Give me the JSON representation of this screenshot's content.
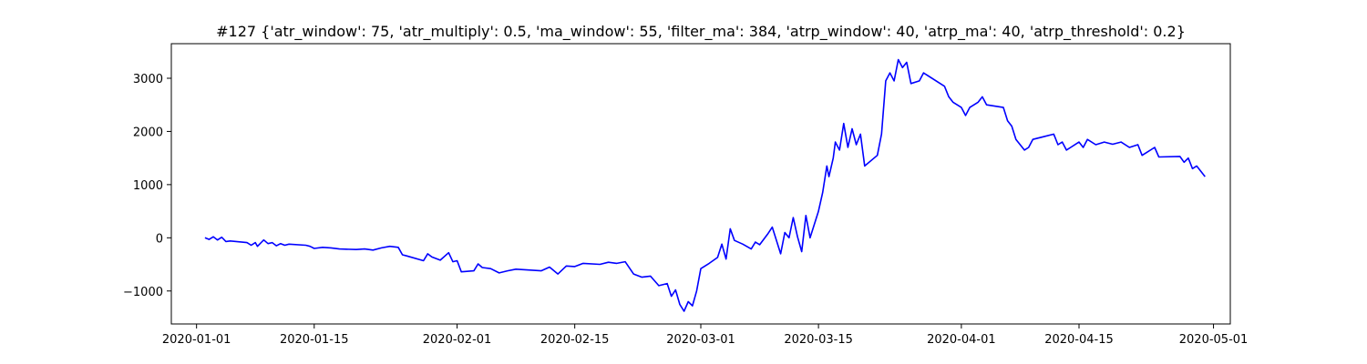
{
  "chart_data": {
    "type": "line",
    "title": "#127 {'atr_window': 75, 'atr_multiply': 0.5, 'ma_window': 55, 'filter_ma': 384, 'atrp_window': 40, 'atrp_ma': 40, 'atrp_threshold': 0.2}",
    "xlabel": "",
    "ylabel": "",
    "x_axis_type": "date",
    "xlim": [
      "2019-12-29",
      "2020-05-03"
    ],
    "ylim": [
      -1620,
      3650
    ],
    "grid": false,
    "legend": "none",
    "line_color": "#0000ff",
    "x_ticks": [
      "2020-01-01",
      "2020-01-15",
      "2020-02-01",
      "2020-02-15",
      "2020-03-01",
      "2020-03-15",
      "2020-04-01",
      "2020-04-15",
      "2020-05-01"
    ],
    "y_ticks": [
      -1000,
      0,
      1000,
      2000,
      3000
    ],
    "series": [
      {
        "name": "",
        "points": [
          [
            "2020-01-02",
            0
          ],
          [
            "2020-01-02T12:00",
            -30
          ],
          [
            "2020-01-03",
            20
          ],
          [
            "2020-01-03T12:00",
            -40
          ],
          [
            "2020-01-04",
            10
          ],
          [
            "2020-01-04T12:00",
            -70
          ],
          [
            "2020-01-05",
            -60
          ],
          [
            "2020-01-07",
            -90
          ],
          [
            "2020-01-07T12:00",
            -140
          ],
          [
            "2020-01-08",
            -90
          ],
          [
            "2020-01-08T06:00",
            -160
          ],
          [
            "2020-01-08T18:00",
            -80
          ],
          [
            "2020-01-09",
            -40
          ],
          [
            "2020-01-09T12:00",
            -110
          ],
          [
            "2020-01-10",
            -90
          ],
          [
            "2020-01-10T12:00",
            -150
          ],
          [
            "2020-01-11",
            -110
          ],
          [
            "2020-01-11T12:00",
            -140
          ],
          [
            "2020-01-12",
            -120
          ],
          [
            "2020-01-14",
            -140
          ],
          [
            "2020-01-14T12:00",
            -160
          ],
          [
            "2020-01-15",
            -200
          ],
          [
            "2020-01-16",
            -180
          ],
          [
            "2020-01-17",
            -190
          ],
          [
            "2020-01-18",
            -210
          ],
          [
            "2020-01-20",
            -220
          ],
          [
            "2020-01-21",
            -210
          ],
          [
            "2020-01-22",
            -230
          ],
          [
            "2020-01-23",
            -190
          ],
          [
            "2020-01-24",
            -160
          ],
          [
            "2020-01-25",
            -180
          ],
          [
            "2020-01-25T12:00",
            -320
          ],
          [
            "2020-01-26",
            -340
          ],
          [
            "2020-01-28",
            -430
          ],
          [
            "2020-01-28T12:00",
            -300
          ],
          [
            "2020-01-29",
            -360
          ],
          [
            "2020-01-30",
            -420
          ],
          [
            "2020-01-31",
            -280
          ],
          [
            "2020-01-31T12:00",
            -450
          ],
          [
            "2020-02-01",
            -430
          ],
          [
            "2020-02-01T12:00",
            -640
          ],
          [
            "2020-02-03",
            -620
          ],
          [
            "2020-02-03T12:00",
            -490
          ],
          [
            "2020-02-04",
            -560
          ],
          [
            "2020-02-05",
            -580
          ],
          [
            "2020-02-06",
            -660
          ],
          [
            "2020-02-07",
            -620
          ],
          [
            "2020-02-08",
            -590
          ],
          [
            "2020-02-11",
            -620
          ],
          [
            "2020-02-12",
            -550
          ],
          [
            "2020-02-13",
            -680
          ],
          [
            "2020-02-14",
            -530
          ],
          [
            "2020-02-15",
            -540
          ],
          [
            "2020-02-16",
            -480
          ],
          [
            "2020-02-18",
            -500
          ],
          [
            "2020-02-19",
            -460
          ],
          [
            "2020-02-20",
            -480
          ],
          [
            "2020-02-21",
            -450
          ],
          [
            "2020-02-22",
            -680
          ],
          [
            "2020-02-23",
            -740
          ],
          [
            "2020-02-24",
            -720
          ],
          [
            "2020-02-25",
            -900
          ],
          [
            "2020-02-26",
            -860
          ],
          [
            "2020-02-26T12:00",
            -1100
          ],
          [
            "2020-02-27",
            -980
          ],
          [
            "2020-02-27T12:00",
            -1250
          ],
          [
            "2020-02-28",
            -1380
          ],
          [
            "2020-02-28T12:00",
            -1200
          ],
          [
            "2020-02-29",
            -1280
          ],
          [
            "2020-02-29T12:00",
            -1000
          ],
          [
            "2020-03-01",
            -580
          ],
          [
            "2020-03-02",
            -480
          ],
          [
            "2020-03-03",
            -370
          ],
          [
            "2020-03-03T12:00",
            -120
          ],
          [
            "2020-03-04",
            -400
          ],
          [
            "2020-03-04T12:00",
            170
          ],
          [
            "2020-03-05",
            -50
          ],
          [
            "2020-03-06",
            -120
          ],
          [
            "2020-03-07",
            -210
          ],
          [
            "2020-03-07T12:00",
            -80
          ],
          [
            "2020-03-08",
            -130
          ],
          [
            "2020-03-09",
            80
          ],
          [
            "2020-03-09T12:00",
            200
          ],
          [
            "2020-03-10",
            -50
          ],
          [
            "2020-03-10T12:00",
            -300
          ],
          [
            "2020-03-11",
            100
          ],
          [
            "2020-03-11T12:00",
            0
          ],
          [
            "2020-03-12",
            380
          ],
          [
            "2020-03-12T12:00",
            20
          ],
          [
            "2020-03-13",
            -260
          ],
          [
            "2020-03-13T12:00",
            420
          ],
          [
            "2020-03-14",
            0
          ],
          [
            "2020-03-15",
            500
          ],
          [
            "2020-03-15T12:00",
            850
          ],
          [
            "2020-03-16",
            1350
          ],
          [
            "2020-03-16T06:00",
            1150
          ],
          [
            "2020-03-16T18:00",
            1500
          ],
          [
            "2020-03-17",
            1800
          ],
          [
            "2020-03-17T12:00",
            1650
          ],
          [
            "2020-03-18",
            2150
          ],
          [
            "2020-03-18T12:00",
            1700
          ],
          [
            "2020-03-19",
            2050
          ],
          [
            "2020-03-19T12:00",
            1750
          ],
          [
            "2020-03-20",
            1950
          ],
          [
            "2020-03-20T12:00",
            1350
          ],
          [
            "2020-03-22",
            1550
          ],
          [
            "2020-03-22T12:00",
            1950
          ],
          [
            "2020-03-23",
            2950
          ],
          [
            "2020-03-23T12:00",
            3100
          ],
          [
            "2020-03-24",
            2950
          ],
          [
            "2020-03-24T12:00",
            3350
          ],
          [
            "2020-03-25",
            3200
          ],
          [
            "2020-03-25T12:00",
            3300
          ],
          [
            "2020-03-26",
            2900
          ],
          [
            "2020-03-27",
            2950
          ],
          [
            "2020-03-27T12:00",
            3100
          ],
          [
            "2020-03-30",
            2850
          ],
          [
            "2020-03-30T12:00",
            2650
          ],
          [
            "2020-03-31",
            2550
          ],
          [
            "2020-04-01",
            2450
          ],
          [
            "2020-04-01T12:00",
            2300
          ],
          [
            "2020-04-02",
            2450
          ],
          [
            "2020-04-03",
            2550
          ],
          [
            "2020-04-03T12:00",
            2650
          ],
          [
            "2020-04-04",
            2500
          ],
          [
            "2020-04-06",
            2450
          ],
          [
            "2020-04-06T12:00",
            2200
          ],
          [
            "2020-04-07",
            2100
          ],
          [
            "2020-04-07T12:00",
            1850
          ],
          [
            "2020-04-08",
            1750
          ],
          [
            "2020-04-08T12:00",
            1650
          ],
          [
            "2020-04-09",
            1700
          ],
          [
            "2020-04-09T12:00",
            1850
          ],
          [
            "2020-04-12",
            1950
          ],
          [
            "2020-04-12T12:00",
            1750
          ],
          [
            "2020-04-13",
            1800
          ],
          [
            "2020-04-13T12:00",
            1650
          ],
          [
            "2020-04-14",
            1700
          ],
          [
            "2020-04-15",
            1800
          ],
          [
            "2020-04-15T12:00",
            1700
          ],
          [
            "2020-04-16",
            1850
          ],
          [
            "2020-04-17",
            1750
          ],
          [
            "2020-04-18",
            1800
          ],
          [
            "2020-04-19",
            1760
          ],
          [
            "2020-04-20",
            1800
          ],
          [
            "2020-04-21",
            1700
          ],
          [
            "2020-04-22",
            1750
          ],
          [
            "2020-04-22T12:00",
            1550
          ],
          [
            "2020-04-23",
            1600
          ],
          [
            "2020-04-24",
            1700
          ],
          [
            "2020-04-24T12:00",
            1520
          ],
          [
            "2020-04-27",
            1530
          ],
          [
            "2020-04-27T12:00",
            1420
          ],
          [
            "2020-04-28",
            1500
          ],
          [
            "2020-04-28T12:00",
            1300
          ],
          [
            "2020-04-29",
            1350
          ],
          [
            "2020-04-29T12:00",
            1250
          ],
          [
            "2020-04-30",
            1150
          ]
        ]
      }
    ]
  }
}
